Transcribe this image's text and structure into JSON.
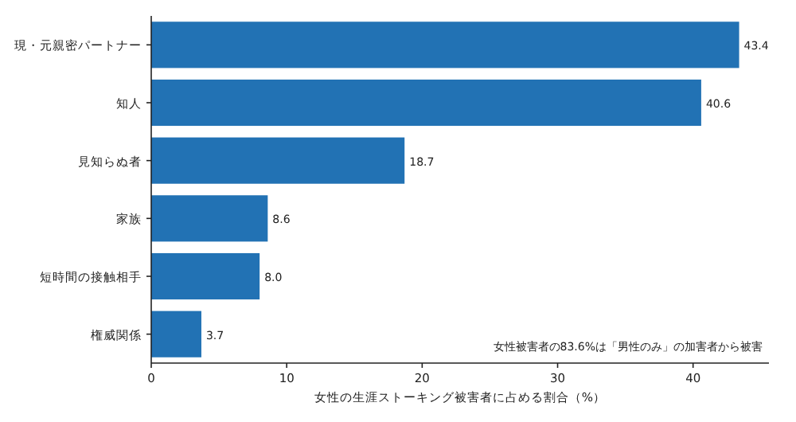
{
  "chart_data": {
    "type": "bar",
    "orientation": "horizontal",
    "categories": [
      "現・元親密パートナー",
      "知人",
      "見知らぬ者",
      "家族",
      "短時間の接触相手",
      "権威関係"
    ],
    "values": [
      43.4,
      40.6,
      18.7,
      8.6,
      8.0,
      3.7
    ],
    "color": "#2272b4",
    "xlim": [
      0,
      45.6
    ],
    "xticks": [
      0,
      10,
      20,
      30,
      40
    ],
    "xlabel": "女性の生涯ストーキング被害者に占める割合（%）",
    "annotations": [
      "女性被害者の83.6%は「男性のみ」の加害者から被害"
    ],
    "value_labels": [
      "43.4",
      "40.6",
      "18.7",
      "8.6",
      "8.0",
      "3.7"
    ]
  }
}
